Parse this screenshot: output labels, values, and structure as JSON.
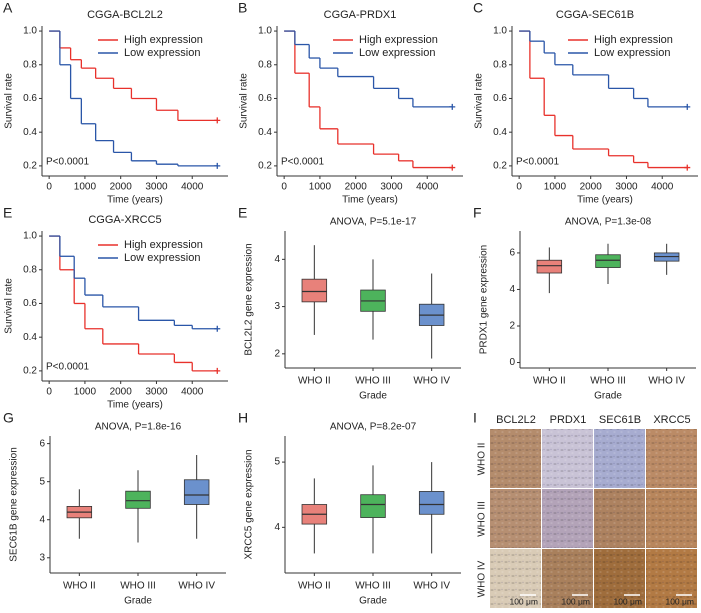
{
  "chart_data": [
    {
      "type": "km",
      "panel": "A",
      "title": "CGGA-BCL2L2",
      "annotation": "P<0.0001",
      "x_label": "Time (years)",
      "y_label": "Survival rate",
      "xlim": [
        -200,
        5000
      ],
      "ylim": [
        0.14,
        1.03
      ],
      "xticks": [
        0,
        1000,
        2000,
        3000,
        4000
      ],
      "yticks": [
        0.2,
        0.4,
        0.6,
        0.8,
        {
          "value": 1,
          "label": "1.0"
        }
      ],
      "legend": "upper right",
      "x": [
        0,
        300,
        600,
        900,
        1300,
        1800,
        2300,
        3000,
        3600,
        4700
      ],
      "series": [
        {
          "name": "High expression",
          "color": "#e8312b",
          "values": [
            1,
            0.9,
            0.83,
            0.78,
            0.72,
            0.66,
            0.6,
            0.53,
            0.47,
            0.47
          ]
        },
        {
          "name": "Low expression",
          "color": "#2a56a8",
          "values": [
            1,
            0.8,
            0.6,
            0.45,
            0.35,
            0.28,
            0.23,
            0.21,
            0.2,
            0.2
          ]
        }
      ]
    },
    {
      "type": "km",
      "panel": "B",
      "title": "CGGA-PRDX1",
      "annotation": "P<0.0001",
      "x_label": "Time (years)",
      "y_label": "Survival rate",
      "xlim": [
        -200,
        5000
      ],
      "ylim": [
        0.14,
        1.03
      ],
      "xticks": [
        0,
        1000,
        2000,
        3000,
        4000
      ],
      "yticks": [
        0.2,
        0.4,
        0.6,
        0.8,
        {
          "value": 1,
          "label": "1.0"
        }
      ],
      "legend": "upper right",
      "x": [
        0,
        300,
        700,
        1000,
        1500,
        2500,
        3200,
        3600,
        4700
      ],
      "series": [
        {
          "name": "High expression",
          "color": "#e8312b",
          "values": [
            1,
            0.75,
            0.55,
            0.42,
            0.33,
            0.27,
            0.23,
            0.19,
            0.19
          ]
        },
        {
          "name": "Low expression",
          "color": "#2a56a8",
          "values": [
            1,
            0.92,
            0.84,
            0.78,
            0.73,
            0.66,
            0.6,
            0.55,
            0.55
          ]
        }
      ]
    },
    {
      "type": "km",
      "panel": "C",
      "title": "CGGA-SEC61B",
      "annotation": "P<0.0001",
      "x_label": "Time (years)",
      "y_label": "Survival rate",
      "xlim": [
        -200,
        5000
      ],
      "ylim": [
        0.14,
        1.03
      ],
      "xticks": [
        0,
        1000,
        2000,
        3000,
        4000
      ],
      "yticks": [
        0.2,
        0.4,
        0.6,
        0.8,
        {
          "value": 1,
          "label": "1.0"
        }
      ],
      "legend": "upper right",
      "x": [
        0,
        300,
        700,
        1000,
        1500,
        2500,
        3200,
        3600,
        4700
      ],
      "series": [
        {
          "name": "High expression",
          "color": "#e8312b",
          "values": [
            1,
            0.72,
            0.5,
            0.38,
            0.3,
            0.26,
            0.22,
            0.19,
            0.19
          ]
        },
        {
          "name": "Low expression",
          "color": "#2a56a8",
          "values": [
            1,
            0.94,
            0.87,
            0.8,
            0.74,
            0.66,
            0.6,
            0.55,
            0.55
          ]
        }
      ]
    },
    {
      "type": "km",
      "panel": "E",
      "title": "CGGA-XRCC5",
      "annotation": "P<0.0001",
      "x_label": "Time (years)",
      "y_label": "Survival rate",
      "xlim": [
        -200,
        5000
      ],
      "ylim": [
        0.14,
        1.03
      ],
      "xticks": [
        0,
        1000,
        2000,
        3000,
        4000
      ],
      "yticks": [
        0.2,
        0.4,
        0.6,
        0.8,
        {
          "value": 1,
          "label": "1.0"
        }
      ],
      "legend": "upper right",
      "x": [
        0,
        300,
        700,
        1000,
        1500,
        2500,
        3500,
        4000,
        4700
      ],
      "series": [
        {
          "name": "High expression",
          "color": "#e8312b",
          "values": [
            1,
            0.8,
            0.6,
            0.45,
            0.36,
            0.3,
            0.25,
            0.2,
            0.2
          ]
        },
        {
          "name": "Low expression",
          "color": "#2a56a8",
          "values": [
            1,
            0.88,
            0.75,
            0.65,
            0.58,
            0.5,
            0.47,
            0.45,
            0.45
          ]
        }
      ]
    },
    {
      "type": "box",
      "panel": "E",
      "title": "ANOVA, P=5.1e-17",
      "x_label": "Grade",
      "y_label": "BCL2L2 gene expression",
      "ylim": [
        1.7,
        4.6
      ],
      "yticks": [
        2,
        3,
        4
      ],
      "categories": [
        "WHO II",
        "WHO III",
        "WHO IV"
      ],
      "colors": [
        "#e5736b",
        "#3aab4a",
        "#5b85c8"
      ],
      "min": [
        2.4,
        2.3,
        1.9
      ],
      "q1": [
        3.1,
        2.9,
        2.6
      ],
      "median": [
        3.32,
        3.12,
        2.82
      ],
      "q3": [
        3.58,
        3.35,
        3.05
      ],
      "max": [
        4.3,
        4.0,
        3.7
      ]
    },
    {
      "type": "box",
      "panel": "F",
      "title": "ANOVA, P=1.3e-08",
      "x_label": "Grade",
      "y_label": "PRDX1 gene expression",
      "ylim": [
        -0.3,
        7.2
      ],
      "yticks": [
        0,
        2,
        4,
        6
      ],
      "categories": [
        "WHO II",
        "WHO III",
        "WHO IV"
      ],
      "colors": [
        "#e5736b",
        "#3aab4a",
        "#5b85c8"
      ],
      "min": [
        3.8,
        4.3,
        4.8
      ],
      "q1": [
        4.9,
        5.2,
        5.55
      ],
      "median": [
        5.3,
        5.6,
        5.8
      ],
      "q3": [
        5.6,
        5.9,
        6.0
      ],
      "max": [
        6.3,
        6.5,
        6.5
      ]
    },
    {
      "type": "box",
      "panel": "G",
      "title": "ANOVA, P=1.8e-16",
      "x_label": "Grade",
      "y_label": "SEC61B gene expression",
      "ylim": [
        2.6,
        6.2
      ],
      "yticks": [
        3,
        4,
        5,
        6
      ],
      "categories": [
        "WHO II",
        "WHO III",
        "WHO IV"
      ],
      "colors": [
        "#e5736b",
        "#3aab4a",
        "#5b85c8"
      ],
      "min": [
        3.5,
        3.4,
        3.5
      ],
      "q1": [
        4.05,
        4.3,
        4.4
      ],
      "median": [
        4.2,
        4.5,
        4.65
      ],
      "q3": [
        4.35,
        4.75,
        5.05
      ],
      "max": [
        4.8,
        5.3,
        5.7
      ]
    },
    {
      "type": "box",
      "panel": "H",
      "title": "ANOVA, P=8.2e-07",
      "x_label": "Grade",
      "y_label": "XRCC5 gene expression",
      "ylim": [
        3.3,
        5.4
      ],
      "yticks": [
        4,
        5
      ],
      "categories": [
        "WHO II",
        "WHO III",
        "WHO IV"
      ],
      "colors": [
        "#e5736b",
        "#3aab4a",
        "#5b85c8"
      ],
      "min": [
        3.6,
        3.6,
        3.6
      ],
      "q1": [
        4.05,
        4.15,
        4.2
      ],
      "median": [
        4.2,
        4.35,
        4.35
      ],
      "q3": [
        4.35,
        4.5,
        4.55
      ],
      "max": [
        4.75,
        4.95,
        5.0
      ]
    }
  ],
  "image_panel": {
    "panel": "I",
    "columns": [
      "BCL2L2",
      "PRDX1",
      "SEC61B",
      "XRCC5"
    ],
    "rows": [
      "WHO II",
      "WHO III",
      "WHO IV"
    ],
    "scale_bars": [
      "100 μm",
      "100 μm",
      "100 μm",
      "100 μm"
    ]
  }
}
